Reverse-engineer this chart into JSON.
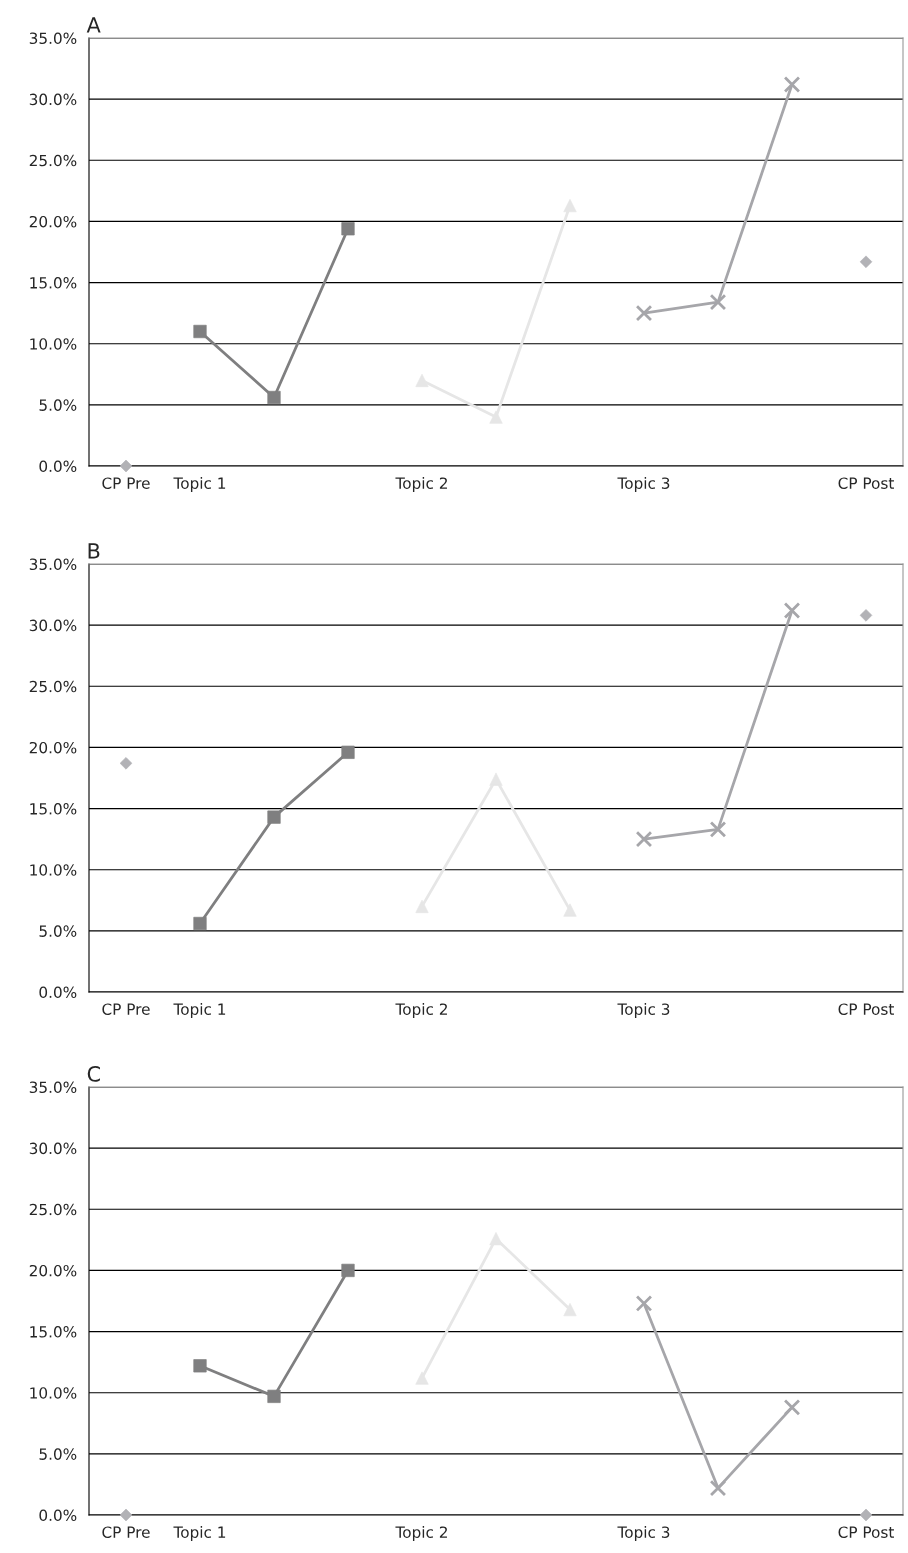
{
  "chart_data": [
    {
      "type": "line",
      "title": "A",
      "categories": [
        "CP Pre",
        "Topic 1",
        null,
        null,
        "Topic 2",
        null,
        null,
        "Topic 3",
        null,
        null,
        "CP Post"
      ],
      "series": [
        {
          "type": "scatter",
          "marker": "diamond",
          "color": "#b2b2b6",
          "values": [
            0.0,
            null,
            null,
            null,
            null,
            null,
            null,
            null,
            null,
            null,
            16.7
          ]
        },
        {
          "marker": "square",
          "color": "#7f7f80",
          "values": [
            null,
            11.0,
            5.6,
            19.4,
            null,
            null,
            null,
            null,
            null,
            null,
            null
          ]
        },
        {
          "marker": "triangle",
          "color": "#e6e6e6",
          "values": [
            null,
            null,
            null,
            null,
            7.0,
            4.0,
            21.3,
            null,
            null,
            null,
            null
          ]
        },
        {
          "marker": "cross",
          "color": "#a6a6aa",
          "values": [
            null,
            null,
            null,
            null,
            null,
            null,
            null,
            12.5,
            13.4,
            31.2,
            null
          ]
        }
      ],
      "ylim": [
        0,
        35
      ],
      "yticks": [
        {
          "value": 0,
          "label": "0.0%"
        },
        {
          "value": 5,
          "label": "5.0%"
        },
        {
          "value": 10,
          "label": "10.0%"
        },
        {
          "value": 15,
          "label": "15.0%"
        },
        {
          "value": 20,
          "label": "20.0%"
        },
        {
          "value": 25,
          "label": "25.0%"
        },
        {
          "value": 30,
          "label": "30.0%"
        },
        {
          "value": 35,
          "label": "35.0%"
        }
      ],
      "grid": "y",
      "legend": false
    },
    {
      "type": "line",
      "title": "B",
      "categories": [
        "CP Pre",
        "Topic 1",
        null,
        null,
        "Topic 2",
        null,
        null,
        "Topic 3",
        null,
        null,
        "CP Post"
      ],
      "series": [
        {
          "type": "scatter",
          "marker": "diamond",
          "color": "#b2b2b6",
          "values": [
            18.7,
            null,
            null,
            null,
            null,
            null,
            null,
            null,
            null,
            null,
            30.8
          ]
        },
        {
          "marker": "square",
          "color": "#7f7f80",
          "values": [
            null,
            5.6,
            14.3,
            19.6,
            null,
            null,
            null,
            null,
            null,
            null,
            null
          ]
        },
        {
          "marker": "triangle",
          "color": "#e6e6e6",
          "values": [
            null,
            null,
            null,
            null,
            7.0,
            17.4,
            6.7,
            null,
            null,
            null,
            null
          ]
        },
        {
          "marker": "cross",
          "color": "#a6a6aa",
          "values": [
            null,
            null,
            null,
            null,
            null,
            null,
            null,
            12.5,
            13.3,
            31.2,
            null
          ]
        }
      ],
      "ylim": [
        0,
        35
      ],
      "yticks": [
        {
          "value": 0,
          "label": "0.0%"
        },
        {
          "value": 5,
          "label": "5.0%"
        },
        {
          "value": 10,
          "label": "10.0%"
        },
        {
          "value": 15,
          "label": "15.0%"
        },
        {
          "value": 20,
          "label": "20.0%"
        },
        {
          "value": 25,
          "label": "25.0%"
        },
        {
          "value": 30,
          "label": "30.0%"
        },
        {
          "value": 35,
          "label": "35.0%"
        }
      ],
      "grid": "y",
      "legend": false
    },
    {
      "type": "line",
      "title": "C",
      "categories": [
        "CP Pre",
        "Topic 1",
        null,
        null,
        "Topic 2",
        null,
        null,
        "Topic 3",
        null,
        null,
        "CP Post"
      ],
      "series": [
        {
          "type": "scatter",
          "marker": "diamond",
          "color": "#b2b2b6",
          "values": [
            0.0,
            null,
            null,
            null,
            null,
            null,
            null,
            null,
            null,
            null,
            0.0
          ]
        },
        {
          "marker": "square",
          "color": "#7f7f80",
          "values": [
            null,
            12.2,
            9.7,
            20.0,
            null,
            null,
            null,
            null,
            null,
            null,
            null
          ]
        },
        {
          "marker": "triangle",
          "color": "#e6e6e6",
          "values": [
            null,
            null,
            null,
            null,
            11.2,
            22.6,
            16.8,
            null,
            null,
            null,
            null
          ]
        },
        {
          "marker": "cross",
          "color": "#a6a6aa",
          "values": [
            null,
            null,
            null,
            null,
            null,
            null,
            null,
            17.3,
            2.2,
            8.8,
            null
          ]
        }
      ],
      "ylim": [
        0,
        35
      ],
      "yticks": [
        {
          "value": 0,
          "label": "0.0%"
        },
        {
          "value": 5,
          "label": "5.0%"
        },
        {
          "value": 10,
          "label": "10.0%"
        },
        {
          "value": 15,
          "label": "15.0%"
        },
        {
          "value": 20,
          "label": "20.0%"
        },
        {
          "value": 25,
          "label": "25.0%"
        },
        {
          "value": 30,
          "label": "30.0%"
        },
        {
          "value": 35,
          "label": "35.0%"
        }
      ],
      "grid": "y",
      "legend": false
    }
  ]
}
